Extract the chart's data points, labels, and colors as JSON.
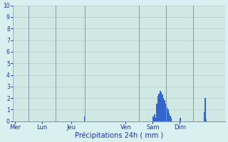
{
  "title": "",
  "xlabel": "Précipitations 24h ( mm )",
  "ylabel": "",
  "ylim": [
    0,
    10
  ],
  "yticks": [
    0,
    1,
    2,
    3,
    4,
    5,
    6,
    7,
    8,
    9,
    10
  ],
  "background_color": "#d8f0f0",
  "plot_bg_color": "#d0e8e4",
  "bar_color": "#3366cc",
  "grid_h_color": "#b8cec8",
  "grid_v_color": "#8899aa",
  "day_labels": [
    "Mer",
    "Lun",
    "Jeu",
    "Ven",
    "Sam",
    "Dim"
  ],
  "day_tick_positions": [
    2,
    26,
    52,
    100,
    124,
    148
  ],
  "day_line_positions": [
    14,
    38,
    64,
    112,
    136,
    160
  ],
  "num_bars": 170,
  "bar_values": [
    0,
    0,
    0,
    0,
    0,
    0,
    0,
    0,
    0,
    0,
    0,
    0,
    0,
    0,
    0,
    0,
    0,
    0,
    0,
    0,
    0,
    0,
    0,
    0,
    0,
    0,
    0,
    0,
    0,
    0,
    0,
    0,
    0,
    0,
    0,
    0,
    0,
    0,
    0,
    0,
    0,
    0,
    0,
    0,
    0,
    0,
    0,
    0,
    0,
    0,
    0,
    0,
    0,
    0,
    0,
    0,
    0,
    0,
    0,
    0,
    0,
    0,
    0,
    0.4,
    0,
    0,
    0,
    0,
    0,
    0,
    0,
    0,
    0,
    0,
    0,
    0,
    0,
    0,
    0,
    0,
    0,
    0,
    0,
    0,
    0,
    0,
    0,
    0,
    0,
    0,
    0,
    0,
    0,
    0,
    0,
    0,
    0,
    0,
    0,
    0,
    0,
    0,
    0,
    0,
    0,
    0,
    0,
    0,
    0,
    0,
    0,
    0,
    0,
    0,
    0,
    0,
    0,
    0,
    0,
    0,
    0,
    0,
    0,
    0,
    0.4,
    0.6,
    0.3,
    1.5,
    2.2,
    2.4,
    2.6,
    2.5,
    2.3,
    2.0,
    1.8,
    1.5,
    1.2,
    1.0,
    0.7,
    0.5,
    0.3,
    0,
    0,
    0,
    0,
    0,
    0,
    0,
    0.3,
    0,
    0,
    0,
    0,
    0,
    0,
    0,
    0,
    0,
    0,
    0,
    0,
    0,
    0,
    0,
    0,
    0,
    0,
    0,
    0,
    0.8,
    2.0,
    0.2,
    0,
    0,
    0,
    0,
    0,
    0,
    0,
    0,
    0,
    0,
    0,
    0,
    0,
    0,
    0,
    0
  ]
}
